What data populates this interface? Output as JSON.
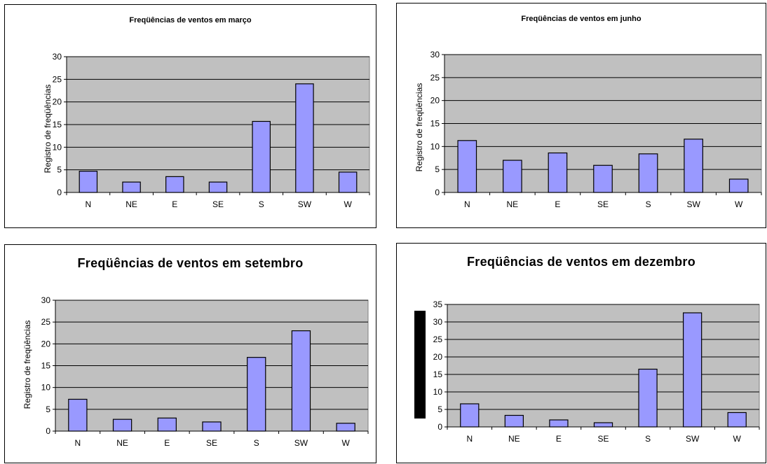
{
  "colors": {
    "bar_fill": "#9999ff",
    "bar_stroke": "#000000",
    "plot_bg": "#c0c0c0",
    "grid": "#000000"
  },
  "chart_data": [
    {
      "type": "bar",
      "title": "Freqüências de ventos em março",
      "xlabel": "",
      "ylabel": "Registro de freqüências",
      "categories": [
        "N",
        "NE",
        "E",
        "SE",
        "S",
        "SW",
        "W"
      ],
      "values": [
        4.7,
        2.3,
        3.5,
        2.3,
        15.7,
        24.0,
        4.5
      ],
      "ylim": [
        0,
        30
      ],
      "yticks": [
        0,
        5,
        10,
        15,
        20,
        25,
        30
      ],
      "grid": true,
      "legend": "none"
    },
    {
      "type": "bar",
      "title": "Freqüências de ventos em junho",
      "xlabel": "",
      "ylabel": "Registro de freqüências",
      "categories": [
        "N",
        "NE",
        "E",
        "SE",
        "S",
        "SW",
        "W"
      ],
      "values": [
        11.3,
        7.0,
        8.6,
        5.9,
        8.4,
        11.6,
        2.9
      ],
      "ylim": [
        0,
        30
      ],
      "yticks": [
        0,
        5,
        10,
        15,
        20,
        25,
        30
      ],
      "grid": true,
      "legend": "none"
    },
    {
      "type": "bar",
      "title": "Freqüências de ventos em setembro",
      "xlabel": "",
      "ylabel": "Registro de freqüências",
      "categories": [
        "N",
        "NE",
        "E",
        "SE",
        "S",
        "SW",
        "W"
      ],
      "values": [
        7.3,
        2.7,
        3.0,
        2.1,
        16.9,
        23.0,
        1.8
      ],
      "ylim": [
        0,
        30
      ],
      "yticks": [
        0,
        5,
        10,
        15,
        20,
        25,
        30
      ],
      "grid": true,
      "legend": "none"
    },
    {
      "type": "bar",
      "title": "Freqüências de ventos em dezembro",
      "xlabel": "",
      "ylabel": "",
      "categories": [
        "N",
        "NE",
        "E",
        "SE",
        "S",
        "SW",
        "W"
      ],
      "values": [
        6.6,
        3.3,
        2.0,
        1.2,
        16.5,
        32.6,
        4.1
      ],
      "ylim": [
        0,
        35
      ],
      "yticks": [
        0,
        5,
        10,
        15,
        20,
        25,
        30,
        35
      ],
      "grid": true,
      "legend": "none"
    }
  ]
}
